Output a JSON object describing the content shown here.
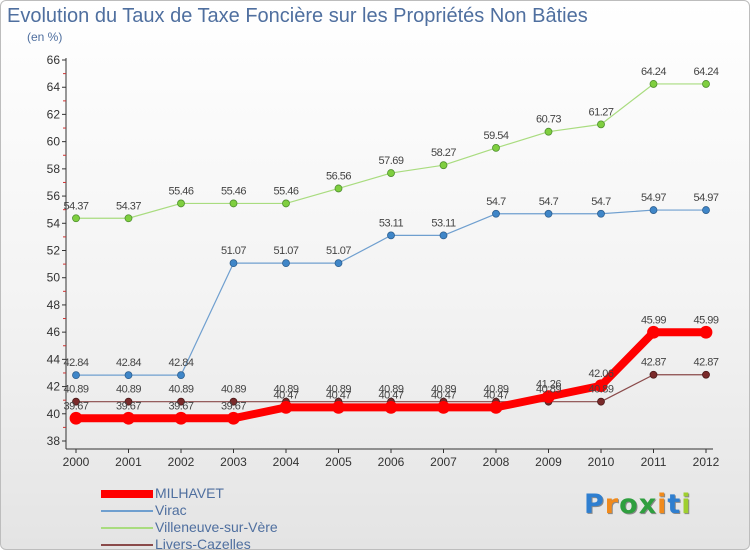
{
  "chart_data": {
    "type": "line",
    "title": "Evolution du Taux de Taxe Foncière sur les Propriétés Non Bâties",
    "subtitle": "(en %)",
    "xlabel": "",
    "ylabel": "",
    "x": [
      "2000",
      "2001",
      "2002",
      "2003",
      "2004",
      "2005",
      "2006",
      "2007",
      "2008",
      "2009",
      "2010",
      "2011",
      "2012"
    ],
    "ylim": [
      38,
      66
    ],
    "yticks": [
      38,
      40,
      42,
      44,
      46,
      48,
      50,
      52,
      54,
      56,
      58,
      60,
      62,
      64,
      66
    ],
    "grid": false,
    "legend_position": "bottom-left",
    "series": [
      {
        "name": "MILHAVET",
        "color": "#ff0000",
        "values": [
          39.67,
          39.67,
          39.67,
          39.67,
          40.47,
          40.47,
          40.47,
          40.47,
          40.47,
          41.26,
          42.06,
          45.99,
          45.99
        ],
        "labels": [
          "39.67",
          "39.67",
          "39.67",
          "39.67",
          "40.47",
          "40.47",
          "40.47",
          "40.47",
          "40.47",
          "41.26",
          "42.06",
          "45.99",
          "45.99"
        ]
      },
      {
        "name": "Virac",
        "color": "#6f9fcf",
        "values": [
          42.84,
          42.84,
          42.84,
          51.07,
          51.07,
          51.07,
          53.11,
          53.11,
          54.7,
          54.7,
          54.7,
          54.97,
          54.97
        ],
        "labels": [
          "42.84",
          "42.84",
          "42.84",
          "51.07",
          "51.07",
          "51.07",
          "53.11",
          "53.11",
          "54.7",
          "54.7",
          "54.7",
          "54.97",
          "54.97"
        ]
      },
      {
        "name": "Villeneuve-sur-Vère",
        "color": "#a9dc7f",
        "values": [
          54.37,
          54.37,
          55.46,
          55.46,
          55.46,
          56.56,
          57.69,
          58.27,
          59.54,
          60.73,
          61.27,
          64.24,
          64.24
        ],
        "labels": [
          "54.37",
          "54.37",
          "55.46",
          "55.46",
          "55.46",
          "56.56",
          "57.69",
          "58.27",
          "59.54",
          "60.73",
          "61.27",
          "64.24",
          "64.24"
        ]
      },
      {
        "name": "Livers-Cazelles",
        "color": "#8a4a4a",
        "values": [
          40.89,
          40.89,
          40.89,
          40.89,
          40.89,
          40.89,
          40.89,
          40.89,
          40.89,
          40.89,
          40.89,
          42.87,
          42.87
        ],
        "labels": [
          "40.89",
          "40.89",
          "40.89",
          "40.89",
          "40.89",
          "40.89",
          "40.89",
          "40.89",
          "40.89",
          "40.89",
          "40.89",
          "42.87",
          "42.87"
        ]
      }
    ]
  },
  "logo": {
    "text": "Proxiti",
    "letter_colors": [
      "#2f7fd0",
      "#f08a1c",
      "#2f9f3f",
      "#2f9f3f",
      "#f08a1c",
      "#2f7fd0",
      "#9fcf2f"
    ]
  }
}
